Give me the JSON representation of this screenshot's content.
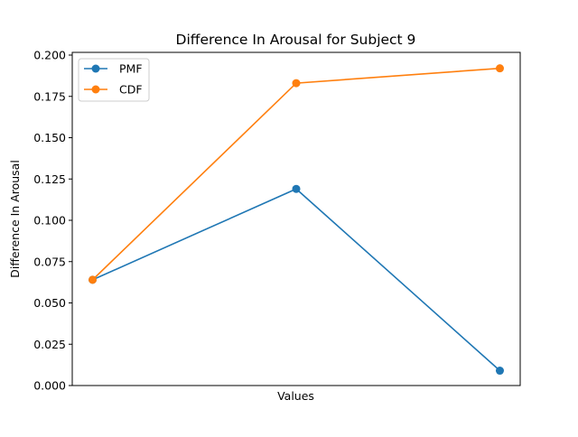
{
  "chart_data": {
    "type": "line",
    "title": "Difference In Arousal for Subject 9",
    "xlabel": "Values",
    "ylabel": "Difference In Arousal",
    "x": [
      0,
      1,
      2
    ],
    "ylim": [
      0.0,
      0.2
    ],
    "yticks": [
      "0.000",
      "0.025",
      "0.050",
      "0.075",
      "0.100",
      "0.125",
      "0.150",
      "0.175",
      "0.200"
    ],
    "grid": false,
    "legend_position": "upper-left",
    "series": [
      {
        "name": "PMF",
        "color": "#1f77b4",
        "values": [
          0.064,
          0.119,
          0.009
        ]
      },
      {
        "name": "CDF",
        "color": "#ff7f0e",
        "values": [
          0.064,
          0.183,
          0.192
        ]
      }
    ]
  }
}
